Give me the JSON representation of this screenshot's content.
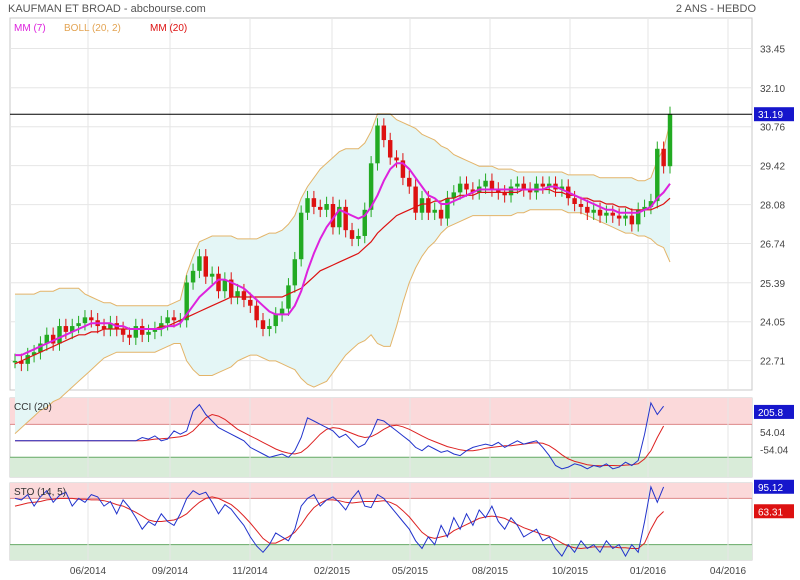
{
  "header": {
    "title": "KAUFMAN ET BROAD - abcbourse.com",
    "period": "2 ANS - HEBDO"
  },
  "colors": {
    "background": "#ffffff",
    "band_fill": "#e4f6f6",
    "band_line": "#e3b469",
    "ma7": "#dd22dd",
    "ma20": "#dd1111",
    "up_candle": "#22aa22",
    "down_candle": "#dd1111",
    "cci_line": "#2233cc",
    "sig_line": "#dd2222",
    "zone_high": "#fbd9da",
    "zone_low": "#d9ecd9",
    "grid": "#e6e6e6",
    "price_tag": "#1616cc",
    "sig_tag": "#dd1111"
  },
  "chart_data": [
    {
      "type": "candlestick",
      "name": "price",
      "title": "KAUFMAN ET BROAD - abcbourse.com",
      "legend": [
        {
          "label": "MM (7)",
          "color": "#dd22dd"
        },
        {
          "label": "BOLL (20, 2)",
          "color": "#e3a453"
        },
        {
          "label": "MM (20)",
          "color": "#dd1111"
        }
      ],
      "yticks": [
        "33.45",
        "32.10",
        "30.76",
        "29.42",
        "28.08",
        "26.74",
        "25.39",
        "24.05",
        "22.71"
      ],
      "ylim": [
        21.7,
        34.5
      ],
      "last_price": "31.19",
      "xticks": [
        "06/2014",
        "09/2014",
        "11/2014",
        "02/2015",
        "05/2015",
        "08/2015",
        "10/2015",
        "01/2016",
        "04/2016"
      ],
      "closes": [
        22.7,
        22.6,
        22.9,
        23.0,
        23.3,
        23.6,
        23.3,
        23.9,
        23.7,
        23.9,
        24.0,
        24.2,
        24.1,
        23.9,
        23.8,
        24.0,
        23.8,
        23.6,
        23.5,
        23.9,
        23.6,
        23.7,
        23.8,
        24.0,
        24.2,
        24.1,
        24.1,
        25.4,
        25.8,
        26.3,
        25.6,
        25.7,
        25.1,
        25.5,
        24.9,
        25.1,
        24.8,
        24.6,
        24.1,
        23.8,
        23.9,
        24.3,
        24.5,
        25.3,
        26.2,
        27.8,
        28.3,
        28.0,
        27.9,
        28.1,
        27.3,
        28.0,
        27.2,
        26.9,
        27.0,
        27.9,
        29.5,
        30.8,
        30.3,
        29.7,
        29.6,
        29.0,
        28.7,
        27.8,
        28.3,
        27.8,
        27.9,
        27.6,
        28.3,
        28.5,
        28.8,
        28.6,
        28.5,
        28.7,
        28.9,
        28.6,
        28.5,
        28.4,
        28.7,
        28.8,
        28.6,
        28.5,
        28.8,
        28.7,
        28.8,
        28.6,
        28.7,
        28.3,
        28.1,
        28.0,
        27.8,
        27.9,
        27.7,
        27.8,
        27.7,
        27.6,
        27.7,
        27.4,
        27.9,
        28.0,
        28.2,
        30.0,
        29.4,
        31.2
      ],
      "ma7": [
        22.9,
        22.9,
        23.0,
        23.1,
        23.2,
        23.3,
        23.4,
        23.5,
        23.6,
        23.7,
        23.8,
        23.9,
        24.0,
        24.0,
        24.0,
        24.0,
        23.9,
        23.9,
        23.8,
        23.8,
        23.8,
        23.8,
        23.8,
        23.8,
        23.9,
        23.9,
        24.0,
        24.3,
        24.6,
        24.9,
        25.1,
        25.3,
        25.5,
        25.5,
        25.4,
        25.3,
        25.2,
        25.0,
        24.8,
        24.6,
        24.4,
        24.3,
        24.3,
        24.3,
        24.6,
        25.1,
        25.8,
        26.4,
        26.9,
        27.3,
        27.6,
        27.9,
        27.8,
        27.7,
        27.6,
        27.7,
        28.0,
        28.4,
        28.9,
        29.3,
        29.5,
        29.5,
        29.3,
        29.0,
        28.7,
        28.4,
        28.3,
        28.1,
        28.1,
        28.2,
        28.3,
        28.4,
        28.5,
        28.6,
        28.6,
        28.6,
        28.6,
        28.6,
        28.6,
        28.6,
        28.6,
        28.6,
        28.6,
        28.6,
        28.7,
        28.7,
        28.6,
        28.5,
        28.4,
        28.3,
        28.2,
        28.1,
        28.0,
        27.9,
        27.9,
        27.8,
        27.8,
        27.8,
        27.8,
        27.9,
        28.0,
        28.3,
        28.5,
        28.8
      ],
      "ma20": [
        22.6,
        22.7,
        22.8,
        22.9,
        23.0,
        23.1,
        23.2,
        23.3,
        23.4,
        23.5,
        23.6,
        23.6,
        23.7,
        23.7,
        23.8,
        23.8,
        23.8,
        23.8,
        23.8,
        23.8,
        23.8,
        23.8,
        23.8,
        23.9,
        23.9,
        24.0,
        24.1,
        24.2,
        24.3,
        24.4,
        24.5,
        24.6,
        24.7,
        24.8,
        24.9,
        24.9,
        24.9,
        24.9,
        24.9,
        24.9,
        24.9,
        24.9,
        24.9,
        25.0,
        25.1,
        25.2,
        25.4,
        25.6,
        25.8,
        25.9,
        26.0,
        26.1,
        26.2,
        26.3,
        26.4,
        26.6,
        26.8,
        27.1,
        27.3,
        27.5,
        27.7,
        27.8,
        27.9,
        28.0,
        28.1,
        28.1,
        28.2,
        28.2,
        28.3,
        28.3,
        28.4,
        28.4,
        28.4,
        28.5,
        28.5,
        28.5,
        28.5,
        28.5,
        28.5,
        28.5,
        28.6,
        28.6,
        28.6,
        28.6,
        28.6,
        28.5,
        28.5,
        28.4,
        28.4,
        28.3,
        28.3,
        28.2,
        28.2,
        28.1,
        28.1,
        28.0,
        28.0,
        27.9,
        27.9,
        27.9,
        27.9,
        28.0,
        28.1,
        28.3
      ],
      "boll_upper": [
        25.0,
        25.0,
        25.0,
        25.0,
        25.1,
        25.1,
        25.1,
        25.2,
        25.2,
        25.2,
        25.2,
        25.0,
        24.9,
        24.8,
        24.7,
        24.7,
        24.6,
        24.6,
        24.6,
        24.6,
        24.6,
        24.6,
        24.6,
        24.6,
        24.6,
        24.7,
        24.8,
        25.7,
        26.3,
        26.8,
        26.9,
        27.0,
        27.0,
        27.0,
        27.0,
        26.9,
        26.9,
        26.9,
        26.9,
        27.0,
        27.1,
        27.1,
        27.2,
        27.4,
        27.7,
        28.3,
        28.7,
        29.0,
        29.3,
        29.5,
        29.7,
        29.9,
        30.0,
        30.0,
        30.0,
        30.2,
        30.6,
        31.2,
        31.2,
        31.2,
        31.0,
        30.9,
        30.8,
        30.7,
        30.5,
        30.4,
        30.3,
        30.1,
        30.0,
        29.8,
        29.7,
        29.6,
        29.5,
        29.4,
        29.4,
        29.4,
        29.3,
        29.3,
        29.3,
        29.2,
        29.2,
        29.2,
        29.2,
        29.2,
        29.2,
        29.2,
        29.2,
        29.1,
        29.1,
        29.1,
        29.1,
        29.1,
        29.0,
        29.0,
        29.0,
        29.0,
        29.0,
        29.0,
        28.9,
        28.9,
        29.0,
        29.6,
        30.0,
        30.9
      ],
      "boll_lower": [
        20.2,
        20.4,
        20.6,
        20.8,
        21.0,
        21.1,
        21.3,
        21.4,
        21.6,
        21.8,
        22.0,
        22.2,
        22.4,
        22.6,
        22.8,
        22.9,
        23.0,
        23.0,
        23.0,
        23.0,
        23.0,
        23.0,
        23.0,
        23.1,
        23.2,
        23.3,
        23.3,
        22.7,
        22.4,
        22.2,
        22.2,
        22.2,
        22.3,
        22.4,
        22.5,
        22.7,
        22.8,
        22.9,
        22.9,
        22.8,
        22.7,
        22.7,
        22.6,
        22.5,
        22.4,
        22.1,
        21.9,
        21.8,
        21.9,
        22.0,
        22.3,
        22.6,
        22.9,
        23.1,
        23.3,
        23.4,
        23.6,
        23.3,
        23.2,
        23.2,
        23.9,
        24.7,
        25.4,
        25.9,
        26.3,
        26.6,
        26.8,
        27.1,
        27.3,
        27.4,
        27.5,
        27.6,
        27.7,
        27.7,
        27.7,
        27.7,
        27.7,
        27.7,
        27.7,
        27.8,
        27.8,
        27.9,
        27.9,
        27.9,
        27.9,
        27.9,
        27.9,
        27.8,
        27.8,
        27.8,
        27.7,
        27.6,
        27.5,
        27.4,
        27.3,
        27.2,
        27.1,
        27.1,
        27.0,
        27.0,
        26.9,
        26.7,
        26.6,
        26.1
      ]
    },
    {
      "type": "line",
      "name": "CCI",
      "title": "CCI (20)",
      "yticks": [
        "54.04",
        "-54.04"
      ],
      "ylim": [
        -220,
        260
      ],
      "last_value": "205.8",
      "cci": [
        0,
        0,
        0,
        0,
        0,
        0,
        0,
        0,
        0,
        0,
        0,
        0,
        0,
        0,
        0,
        0,
        0,
        0,
        0,
        0,
        20,
        10,
        30,
        0,
        10,
        60,
        40,
        60,
        180,
        220,
        160,
        120,
        80,
        60,
        40,
        20,
        0,
        -40,
        -60,
        -80,
        -100,
        -90,
        -80,
        -100,
        -60,
        20,
        140,
        120,
        100,
        80,
        60,
        20,
        40,
        0,
        -40,
        -20,
        40,
        130,
        120,
        90,
        60,
        30,
        0,
        -40,
        -60,
        -30,
        -50,
        -70,
        -60,
        -80,
        -90,
        -60,
        -40,
        -30,
        -20,
        -30,
        -10,
        -40,
        -20,
        0,
        -20,
        -10,
        0,
        -40,
        -90,
        -150,
        -170,
        -160,
        -140,
        -150,
        -170,
        -150,
        -160,
        -140,
        -170,
        -160,
        -130,
        -150,
        -120,
        40,
        230,
        160,
        210
      ],
      "signal": [
        0,
        0,
        0,
        0,
        0,
        0,
        0,
        0,
        0,
        0,
        0,
        0,
        0,
        0,
        0,
        0,
        0,
        0,
        0,
        0,
        0,
        5,
        10,
        12,
        15,
        20,
        25,
        35,
        60,
        100,
        140,
        160,
        150,
        130,
        100,
        70,
        50,
        30,
        10,
        -10,
        -30,
        -50,
        -65,
        -75,
        -80,
        -70,
        -40,
        0,
        40,
        70,
        80,
        75,
        60,
        45,
        30,
        20,
        25,
        45,
        70,
        90,
        95,
        85,
        70,
        50,
        30,
        10,
        -5,
        -20,
        -35,
        -45,
        -55,
        -60,
        -60,
        -55,
        -45,
        -40,
        -35,
        -30,
        -30,
        -25,
        -20,
        -15,
        -12,
        -15,
        -30,
        -55,
        -85,
        -110,
        -125,
        -135,
        -145,
        -150,
        -152,
        -150,
        -150,
        -152,
        -148,
        -145,
        -140,
        -110,
        -60,
        20,
        90
      ]
    },
    {
      "type": "line",
      "name": "STO",
      "title": "STO (14, 5)",
      "ylim": [
        0,
        100
      ],
      "last_value_k": "95.12",
      "last_value_d": "63.31",
      "k": [
        80,
        78,
        85,
        70,
        82,
        90,
        75,
        84,
        88,
        70,
        80,
        75,
        85,
        82,
        70,
        76,
        60,
        78,
        68,
        55,
        40,
        50,
        45,
        60,
        50,
        45,
        60,
        80,
        90,
        85,
        88,
        75,
        60,
        72,
        66,
        55,
        45,
        30,
        18,
        10,
        20,
        35,
        30,
        25,
        40,
        70,
        80,
        85,
        70,
        78,
        82,
        75,
        65,
        80,
        90,
        70,
        68,
        85,
        80,
        70,
        60,
        50,
        40,
        25,
        15,
        30,
        20,
        45,
        30,
        55,
        40,
        60,
        45,
        65,
        55,
        70,
        50,
        40,
        55,
        45,
        30,
        35,
        40,
        25,
        30,
        15,
        5,
        20,
        10,
        25,
        15,
        20,
        10,
        25,
        15,
        20,
        5,
        20,
        10,
        50,
        95,
        75,
        95
      ],
      "d": [
        70,
        72,
        74,
        75,
        76,
        78,
        79,
        80,
        80,
        80,
        79,
        79,
        78,
        78,
        77,
        75,
        72,
        70,
        66,
        62,
        57,
        52,
        50,
        50,
        51,
        52,
        55,
        60,
        68,
        75,
        80,
        82,
        80,
        76,
        72,
        65,
        57,
        48,
        38,
        28,
        22,
        22,
        26,
        30,
        36,
        46,
        58,
        68,
        74,
        78,
        78,
        77,
        75,
        74,
        75,
        76,
        76,
        76,
        77,
        75,
        71,
        64,
        56,
        46,
        36,
        30,
        28,
        30,
        32,
        38,
        42,
        46,
        50,
        54,
        56,
        57,
        56,
        54,
        50,
        46,
        42,
        39,
        36,
        33,
        31,
        27,
        22,
        18,
        16,
        15,
        16,
        17,
        17,
        17,
        17,
        16,
        16,
        15,
        15,
        22,
        40,
        55,
        63
      ]
    }
  ]
}
